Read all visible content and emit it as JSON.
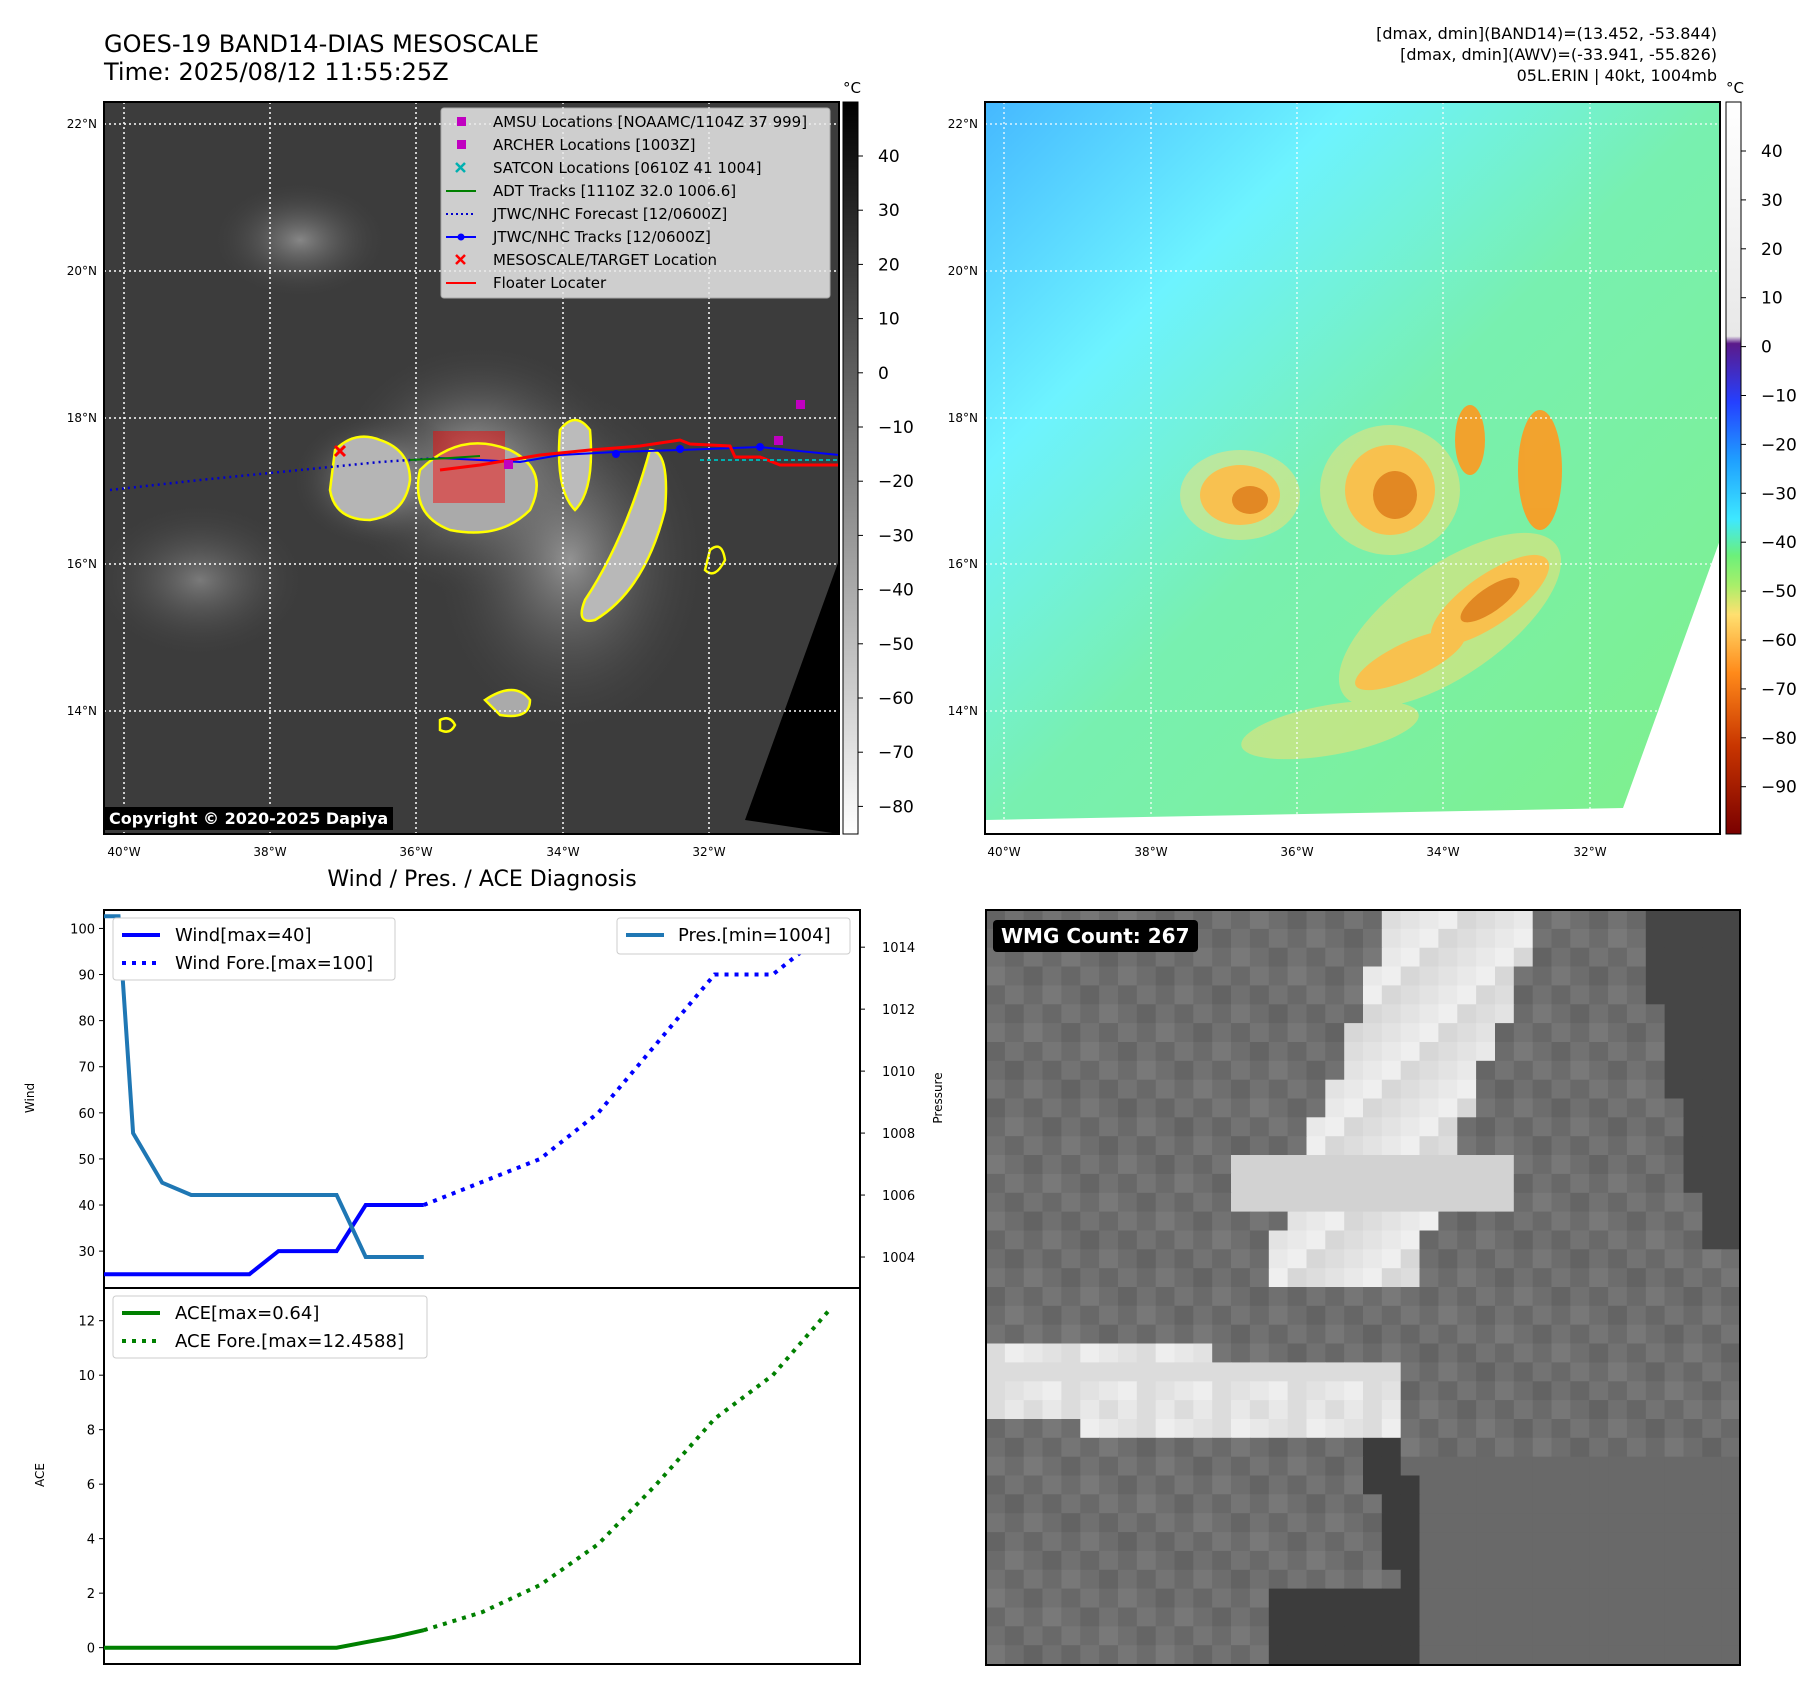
{
  "header": {
    "title": "GOES-19 BAND14-DIAS MESOSCALE",
    "time": "Time: 2025/08/12 11:55:25Z",
    "dmax_band14": "[dmax, dmin](BAND14)=(13.452, -53.844)",
    "dmax_awv": "[dmax, dmin](AWV)=(-33.941, -55.826)",
    "storm": "05L.ERIN | 40kt, 1004mb"
  },
  "map": {
    "lat_labels": [
      "22°N",
      "20°N",
      "18°N",
      "16°N",
      "14°N"
    ],
    "lon_labels": [
      "40°W",
      "38°W",
      "36°W",
      "34°W",
      "32°W"
    ],
    "copyright": "Copyright © 2020-2025 Dapiya",
    "legend": [
      {
        "label": "AMSU Locations [NOAAMC/1104Z 37 999]",
        "color": "#c000c0",
        "kind": "square"
      },
      {
        "label": "ARCHER Locations [1003Z]",
        "color": "#c000c0",
        "kind": "square"
      },
      {
        "label": "SATCON Locations [0610Z 41 1004]",
        "color": "#00b0b0",
        "kind": "x"
      },
      {
        "label": "ADT Tracks [1110Z 32.0 1006.6]",
        "color": "#008000",
        "kind": "line"
      },
      {
        "label": "JTWC/NHC Forecast [12/0600Z]",
        "color": "#0000cc",
        "kind": "dotted"
      },
      {
        "label": "JTWC/NHC Tracks [12/0600Z]",
        "color": "#0000ff",
        "kind": "linedot"
      },
      {
        "label": "MESOSCALE/TARGET Location",
        "color": "#ff0000",
        "kind": "x"
      },
      {
        "label": "Floater Locater",
        "color": "#ff0000",
        "kind": "line"
      }
    ]
  },
  "colorbar_gray": {
    "unit": "°C",
    "ticks": [
      "40",
      "30",
      "20",
      "10",
      "0",
      "−10",
      "−20",
      "−30",
      "−40",
      "−50",
      "−60",
      "−70",
      "−80"
    ]
  },
  "colorbar_color": {
    "unit": "°C",
    "ticks": [
      "40",
      "30",
      "20",
      "10",
      "0",
      "−10",
      "−20",
      "−30",
      "−40",
      "−50",
      "−60",
      "−70",
      "−80",
      "−90"
    ]
  },
  "wmg": {
    "label": "WMG Count: 267"
  },
  "chart_data": [
    {
      "type": "line",
      "title": "Wind / Pres. / ACE Diagnosis",
      "ylabel": "Wind",
      "ylabel_right": "Pressure",
      "ylim": [
        22,
        104
      ],
      "ylim_right": [
        1003,
        1015.2
      ],
      "xlim": [
        0,
        26
      ],
      "y_ticks": [
        30,
        40,
        50,
        60,
        70,
        80,
        90,
        100
      ],
      "y_ticks_right": [
        1004,
        1006,
        1008,
        1010,
        1012,
        1014
      ],
      "series": [
        {
          "name": "Wind[max=40]",
          "color": "#0000ff",
          "style": "solid",
          "x": [
            0,
            1,
            2,
            3,
            4,
            5,
            6,
            7,
            8,
            9,
            10,
            11
          ],
          "values": [
            25,
            25,
            25,
            25,
            25,
            25,
            30,
            30,
            30,
            40,
            40,
            40
          ]
        },
        {
          "name": "Wind Fore.[max=100]",
          "color": "#0000ff",
          "style": "dotted",
          "x": [
            11,
            13,
            15,
            17,
            19,
            21,
            23,
            25
          ],
          "values": [
            40,
            45,
            50,
            60,
            75,
            90,
            90,
            100
          ]
        },
        {
          "name": "Pres.[min=1004]",
          "color": "#1f77b4",
          "style": "solid",
          "axis": "right",
          "x": [
            0,
            0.5,
            1,
            2,
            3,
            4,
            5,
            6,
            7,
            8,
            8.5,
            9,
            10,
            11
          ],
          "values": [
            1015,
            1015,
            1008,
            1006.4,
            1006,
            1006,
            1006,
            1006,
            1006,
            1006,
            1005,
            1004,
            1004,
            1004
          ]
        }
      ]
    },
    {
      "type": "line",
      "ylabel": "ACE",
      "ylim": [
        -0.6,
        13.2
      ],
      "xlim": [
        0,
        26
      ],
      "y_ticks": [
        0,
        2,
        4,
        6,
        8,
        10,
        12
      ],
      "series": [
        {
          "name": "ACE[max=0.64]",
          "color": "#008000",
          "style": "solid",
          "x": [
            0,
            2,
            4,
            6,
            8,
            9,
            10,
            11
          ],
          "values": [
            0,
            0,
            0,
            0,
            0,
            0.2,
            0.4,
            0.64
          ]
        },
        {
          "name": "ACE Fore.[max=12.4588]",
          "color": "#008000",
          "style": "dotted",
          "x": [
            11,
            13,
            15,
            17,
            19,
            21,
            23,
            25
          ],
          "values": [
            0.64,
            1.3,
            2.3,
            3.8,
            6.0,
            8.4,
            10.0,
            12.4588
          ]
        }
      ]
    }
  ]
}
